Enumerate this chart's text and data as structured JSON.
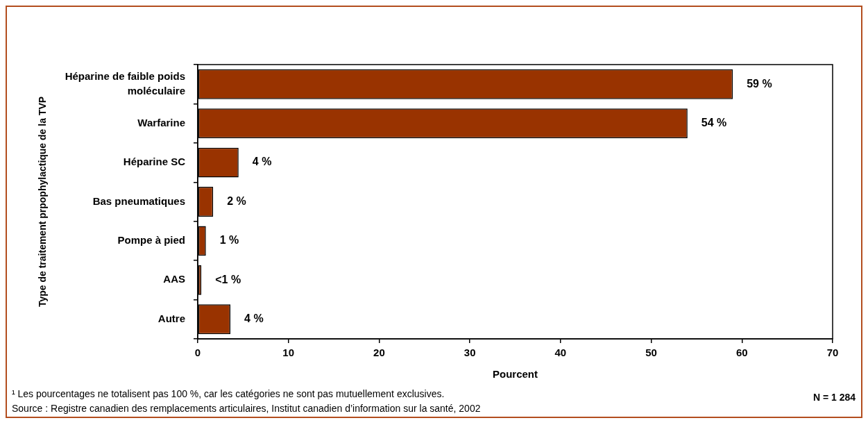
{
  "chart_data": {
    "type": "bar",
    "orientation": "horizontal",
    "categories": [
      "Héparine de faible poids moléculaire",
      "Warfarine",
      "Héparine SC",
      "Bas pneumatiques",
      "Pompe à pied",
      "AAS",
      "Autre"
    ],
    "values": [
      59,
      54,
      4.5,
      1.7,
      0.9,
      0.4,
      3.6
    ],
    "color": "#993300",
    "value_labels": [
      "59 %",
      "54 %",
      "4 %",
      "2 %",
      "1 %",
      "<1 %",
      "4 %"
    ],
    "xlim": [
      0,
      70
    ],
    "xticks": [
      0,
      10,
      20,
      30,
      40,
      50,
      60,
      70
    ],
    "xlabel": "Pourcent",
    "ylabel": "Type de traitement prpophylactique de la TVP",
    "annotations": [
      "¹ Les pourcentages ne totalisent pas 100 %, car les catégories ne sont pas mutuellement exclusives.",
      "Source : Registre canadien des remplacements articulaires, Institut canadien d’information sur la santé, 2002",
      "N = 1 284"
    ]
  }
}
